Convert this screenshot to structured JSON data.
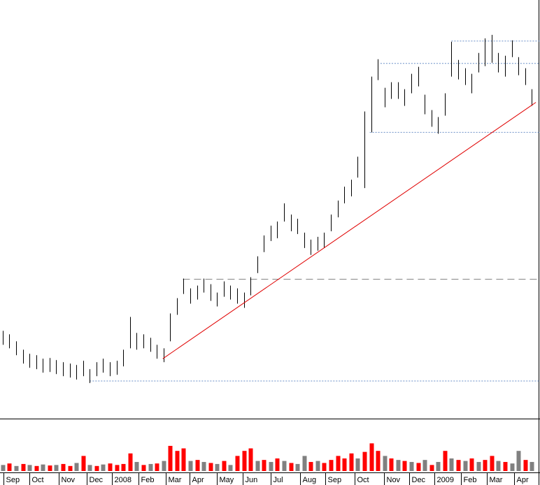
{
  "chart_data": {
    "type": "ohlc",
    "xlim": [
      -0.4,
      79.8
    ],
    "xticks": [
      {
        "value": 0.1,
        "label": "Sep"
      },
      {
        "value": 4,
        "label": "Oct"
      },
      {
        "value": 8.4,
        "label": "Nov"
      },
      {
        "value": 12.6,
        "label": "Dec"
      },
      {
        "value": 16.3,
        "label": "2008"
      },
      {
        "value": 20.3,
        "label": "Feb"
      },
      {
        "value": 24.3,
        "label": "Mar"
      },
      {
        "value": 27.9,
        "label": "Apr"
      },
      {
        "value": 32,
        "label": "May"
      },
      {
        "value": 35.8,
        "label": "Jun"
      },
      {
        "value": 40,
        "label": "Jul"
      },
      {
        "value": 44.4,
        "label": "Aug"
      },
      {
        "value": 48.2,
        "label": "Sep"
      },
      {
        "value": 52.5,
        "label": "Oct"
      },
      {
        "value": 56.9,
        "label": "Nov"
      },
      {
        "value": 60.7,
        "label": "Dec"
      },
      {
        "value": 64.5,
        "label": "2009"
      },
      {
        "value": 68.4,
        "label": "Feb"
      },
      {
        "value": 72.3,
        "label": "Mar"
      },
      {
        "value": 76.4,
        "label": "Apr"
      }
    ],
    "ylim": [
      0,
      600
    ],
    "color": "#000000",
    "high": [
      125,
      120,
      110,
      98,
      92,
      90,
      85,
      86,
      83,
      80,
      78,
      76,
      82,
      70,
      80,
      85,
      80,
      82,
      98,
      145,
      122,
      120,
      115,
      105,
      100,
      150,
      172,
      200,
      186,
      190,
      200,
      192,
      180,
      196,
      190,
      186,
      180,
      202,
      232,
      262,
      276,
      282,
      308,
      292,
      286,
      266,
      256,
      260,
      266,
      292,
      312,
      332,
      342,
      375,
      440,
      490,
      515,
      474,
      482,
      482,
      472,
      494,
      504,
      464,
      442,
      432,
      466,
      540,
      514,
      502,
      494,
      524,
      545,
      550,
      524,
      520,
      542,
      518,
      502,
      472
    ],
    "low": [
      105,
      100,
      90,
      78,
      72,
      70,
      65,
      66,
      63,
      60,
      58,
      55,
      60,
      50,
      60,
      65,
      60,
      62,
      74,
      100,
      98,
      100,
      95,
      85,
      80,
      110,
      148,
      178,
      164,
      170,
      180,
      168,
      160,
      174,
      170,
      164,
      158,
      176,
      208,
      238,
      254,
      258,
      282,
      268,
      264,
      244,
      234,
      240,
      244,
      268,
      288,
      308,
      318,
      345,
      330,
      410,
      485,
      446,
      458,
      458,
      448,
      466,
      476,
      436,
      418,
      408,
      434,
      490,
      486,
      478,
      466,
      496,
      505,
      510,
      496,
      490,
      518,
      492,
      478,
      448
    ],
    "levels": [
      {
        "value": 53,
        "from": 13,
        "color": "#6a8fc8",
        "dash": "2 2"
      },
      {
        "value": 199,
        "from": 26.9,
        "color": "#808080",
        "dash": "10 6"
      },
      {
        "value": 410,
        "from": 54.8,
        "color": "#6a8fc8",
        "dash": "2 2"
      },
      {
        "value": 509,
        "from": 56.4,
        "color": "#6a8fc8",
        "dash": "2 2"
      },
      {
        "value": 541,
        "from": 67,
        "color": "#6a8fc8",
        "dash": "2 2"
      }
    ],
    "trendline": {
      "x": [
        23.9,
        79.6
      ],
      "values": [
        85,
        453
      ],
      "color": "#e00000"
    },
    "volume": {
      "ylim": [
        0,
        100
      ],
      "values": [
        12,
        15,
        10,
        14,
        12,
        10,
        13,
        11,
        12,
        14,
        10,
        16,
        30,
        12,
        10,
        13,
        15,
        12,
        14,
        35,
        18,
        12,
        14,
        15,
        20,
        50,
        40,
        45,
        20,
        22,
        18,
        16,
        14,
        20,
        12,
        30,
        40,
        45,
        20,
        22,
        18,
        25,
        20,
        16,
        14,
        30,
        18,
        20,
        16,
        22,
        30,
        25,
        35,
        25,
        38,
        55,
        40,
        30,
        25,
        22,
        20,
        18,
        16,
        22,
        12,
        18,
        40,
        25,
        22,
        20,
        25,
        18,
        22,
        30,
        20,
        18,
        15,
        40,
        22,
        18
      ],
      "colors": [
        "#808080",
        "#ff0000",
        "#808080",
        "#ff0000",
        "#808080",
        "#ff0000",
        "#808080",
        "#ff0000",
        "#808080",
        "#ff0000",
        "#ff0000",
        "#808080",
        "#ff0000",
        "#808080",
        "#ff0000",
        "#808080",
        "#ff0000",
        "#ff0000",
        "#ff0000",
        "#ff0000",
        "#808080",
        "#ff0000",
        "#808080",
        "#ff0000",
        "#808080",
        "#ff0000",
        "#ff0000",
        "#ff0000",
        "#808080",
        "#ff0000",
        "#808080",
        "#ff0000",
        "#808080",
        "#ff0000",
        "#808080",
        "#ff0000",
        "#ff0000",
        "#ff0000",
        "#808080",
        "#ff0000",
        "#808080",
        "#ff0000",
        "#808080",
        "#ff0000",
        "#808080",
        "#808080",
        "#ff0000",
        "#808080",
        "#ff0000",
        "#ff0000",
        "#ff0000",
        "#ff0000",
        "#ff0000",
        "#808080",
        "#ff0000",
        "#ff0000",
        "#ff0000",
        "#808080",
        "#ff0000",
        "#808080",
        "#ff0000",
        "#808080",
        "#ff0000",
        "#808080",
        "#ff0000",
        "#808080",
        "#ff0000",
        "#808080",
        "#ff0000",
        "#808080",
        "#ff0000",
        "#808080",
        "#ff0000",
        "#ff0000",
        "#808080",
        "#ff0000",
        "#808080",
        "#808080",
        "#ff0000",
        "#808080"
      ]
    }
  }
}
